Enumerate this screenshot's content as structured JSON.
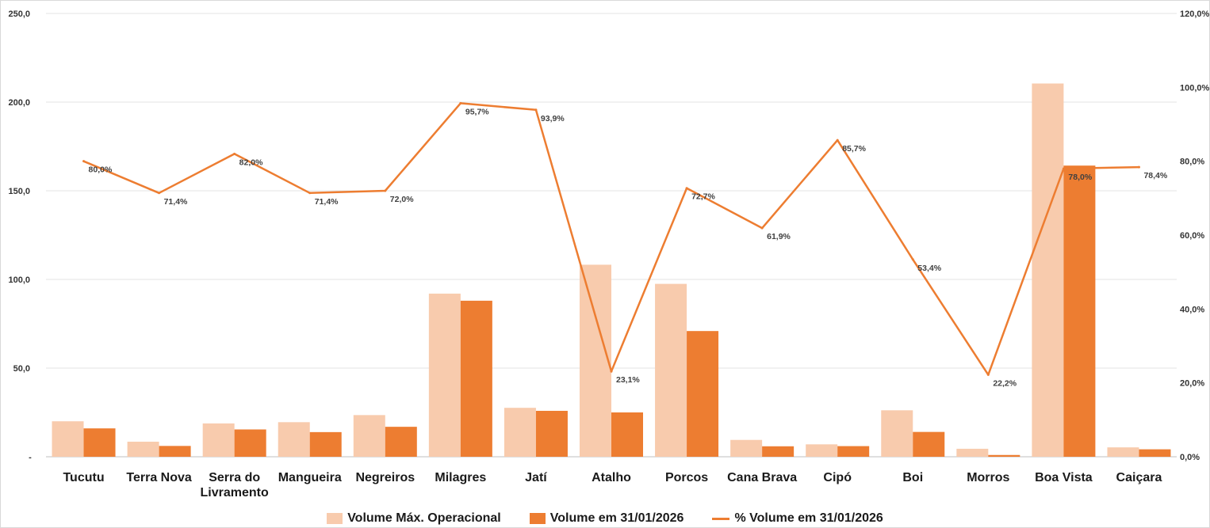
{
  "chart_data": {
    "type": "bar",
    "categories": [
      "Tucutu",
      "Terra Nova",
      "Serra do Livramento",
      "Mangueira",
      "Negreiros",
      "Milagres",
      "Jatí",
      "Atalho",
      "Porcos",
      "Cana Brava",
      "Cipó",
      "Boi",
      "Morros",
      "Boa Vista",
      "Caiçara"
    ],
    "category_lines": [
      [
        "Tucutu"
      ],
      [
        "Terra Nova"
      ],
      [
        "Serra do",
        "Livramento"
      ],
      [
        "Mangueira"
      ],
      [
        "Negreiros"
      ],
      [
        "Milagres"
      ],
      [
        "Jatí"
      ],
      [
        "Atalho"
      ],
      [
        "Porcos"
      ],
      [
        "Cana Brava"
      ],
      [
        "Cipó"
      ],
      [
        "Boi"
      ],
      [
        "Morros"
      ],
      [
        "Boa Vista"
      ],
      [
        "Caiçara"
      ]
    ],
    "series": [
      {
        "name": "Volume Máx. Operacional",
        "type": "bar",
        "axis": "left",
        "color": "#f8cbad",
        "values": [
          20.0,
          8.5,
          18.8,
          19.5,
          23.5,
          92.0,
          27.6,
          108.3,
          97.5,
          9.5,
          7.0,
          26.2,
          4.5,
          210.5,
          5.3
        ]
      },
      {
        "name": "Volume em 31/01/2026",
        "type": "bar",
        "axis": "left",
        "color": "#ed7d31",
        "values": [
          16.0,
          6.1,
          15.4,
          13.9,
          16.9,
          88.0,
          25.9,
          25.0,
          70.9,
          5.9,
          6.0,
          14.0,
          1.0,
          164.2,
          4.2
        ]
      },
      {
        "name": "% Volume em 31/01/2026",
        "type": "line",
        "axis": "right",
        "color": "#ed7d31",
        "values": [
          80.0,
          71.4,
          82.0,
          71.4,
          72.0,
          95.7,
          93.9,
          23.1,
          72.7,
          61.9,
          85.7,
          53.4,
          22.2,
          78.0,
          78.4
        ],
        "labels": [
          "80,0%",
          "71,4%",
          "82,0%",
          "71,4%",
          "72,0%",
          "95,7%",
          "93,9%",
          "23,1%",
          "72,7%",
          "61,9%",
          "85,7%",
          "53,4%",
          "22,2%",
          "78,0%",
          "78,4%"
        ]
      }
    ],
    "y_left": {
      "min": 0,
      "max": 250,
      "ticks": [
        0,
        50,
        100,
        150,
        200,
        250
      ],
      "tick_labels": [
        "-",
        "50,0",
        "100,0",
        "150,0",
        "200,0",
        "250,0"
      ]
    },
    "y_right": {
      "min": 0,
      "max": 120,
      "ticks": [
        0,
        20,
        40,
        60,
        80,
        100,
        120
      ],
      "tick_labels": [
        "0,0%",
        "20,0%",
        "40,0%",
        "60,0%",
        "80,0%",
        "100,0%",
        "120,0%"
      ]
    },
    "grid": true,
    "legend_position": "bottom"
  },
  "legend": {
    "items": [
      {
        "label": "Volume Máx. Operacional",
        "color": "#f8cbad",
        "kind": "bar"
      },
      {
        "label": "Volume em 31/01/2026",
        "color": "#ed7d31",
        "kind": "bar"
      },
      {
        "label": "% Volume em 31/01/2026",
        "color": "#ed7d31",
        "kind": "line"
      }
    ]
  }
}
